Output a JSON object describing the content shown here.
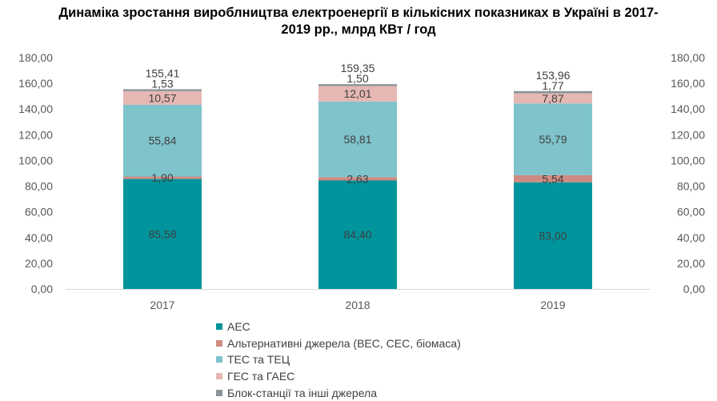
{
  "title_line1": "Динаміка зростання вироблництва електроенергії в кількісних показниках в Україні в 2017-",
  "title_line2": "2019 рр., млрд КВт / год",
  "chart_data": {
    "type": "bar",
    "stacked": true,
    "categories": [
      "2017",
      "2018",
      "2019"
    ],
    "totals": [
      155.41,
      159.35,
      153.96
    ],
    "total_labels": [
      "155,41",
      "159,35",
      "153,96"
    ],
    "series": [
      {
        "name": "АЕС",
        "color": "#00949c",
        "values": [
          85.58,
          84.4,
          83.0
        ],
        "labels": [
          "85,58",
          "84,40",
          "83,00"
        ]
      },
      {
        "name": "Альтернативні джерела (ВЕС, СЕС, біомаса)",
        "color": "#cf8b82",
        "values": [
          1.9,
          2.63,
          5.54
        ],
        "labels": [
          "1,90",
          "2,63",
          "5,54"
        ]
      },
      {
        "name": "ТЕС та ТЕЦ",
        "color": "#7fc3cb",
        "values": [
          55.84,
          58.81,
          55.79
        ],
        "labels": [
          "55,84",
          "58,81",
          "55,79"
        ]
      },
      {
        "name": "ГЕС та ГАЕС",
        "color": "#e5b8b3",
        "values": [
          10.57,
          12.01,
          7.87
        ],
        "labels": [
          "10,57",
          "12,01",
          "7,87"
        ]
      },
      {
        "name": "Блок-станції та інші джерела",
        "color": "#8c9499",
        "values": [
          1.53,
          1.5,
          1.77
        ],
        "labels": [
          "1,53",
          "1,50",
          "1,77"
        ]
      }
    ],
    "y_ticks": [
      "0,00",
      "20,00",
      "40,00",
      "60,00",
      "80,00",
      "100,00",
      "120,00",
      "140,00",
      "160,00",
      "180,00"
    ],
    "ylim": [
      0,
      180
    ],
    "grid": false,
    "legend_position": "bottom"
  }
}
